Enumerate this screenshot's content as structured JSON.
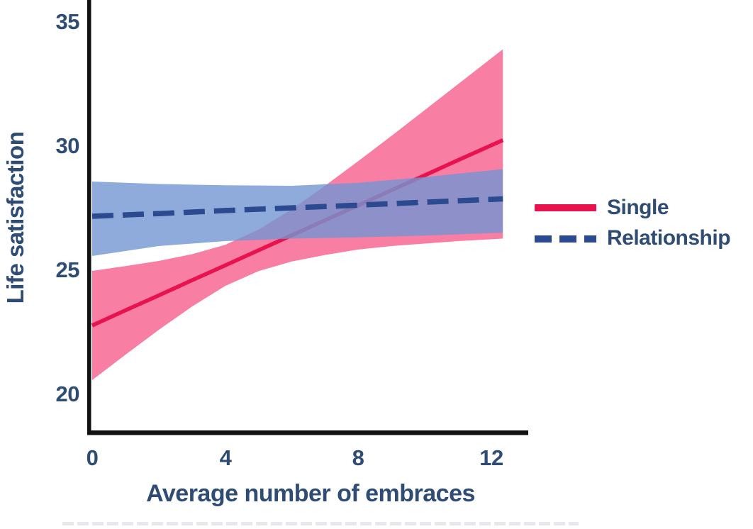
{
  "figure": {
    "background": "#ffffff",
    "text_color": "#2e4c74",
    "axis_color": "#111111"
  },
  "chart_data": {
    "type": "line",
    "title": "",
    "xlabel": "Average number of embraces",
    "ylabel": "Life satisfaction",
    "x_tick_labels": [
      "0",
      "4",
      "8",
      "12"
    ],
    "y_tick_labels": [
      "35",
      "30",
      "25",
      "20"
    ],
    "xlim": [
      -0.15,
      13.1
    ],
    "ylim": [
      18.4,
      35.9
    ],
    "grid": false,
    "legend_position": "right",
    "series": [
      {
        "name": "Single",
        "style": "solid",
        "color": "#e8124e",
        "band_color": "#f87ea3",
        "band_opacity": 1,
        "line_width": 5.5,
        "x": [
          0,
          1,
          2,
          3,
          4,
          5,
          6,
          7,
          8,
          9,
          10,
          11,
          12.35
        ],
        "y": [
          22.8,
          23.41,
          24.01,
          24.62,
          25.22,
          25.83,
          26.43,
          27.04,
          27.64,
          28.25,
          28.85,
          29.46,
          30.27
        ],
        "ci_upper": [
          25.0,
          25.19,
          25.4,
          25.67,
          26.05,
          26.66,
          27.48,
          28.43,
          29.42,
          30.44,
          31.48,
          32.52,
          33.93
        ],
        "ci_lower": [
          20.6,
          21.62,
          22.62,
          23.56,
          24.39,
          24.99,
          25.38,
          25.64,
          25.86,
          26.0,
          26.1,
          26.2,
          26.3
        ]
      },
      {
        "name": "Relationship",
        "style": "dashed",
        "color": "#2c4a8f",
        "band_color": "#7396d2",
        "band_opacity": 0.8,
        "line_width": 7.5,
        "x": [
          0,
          2,
          4,
          6,
          8,
          10,
          12.35
        ],
        "y": [
          27.2,
          27.31,
          27.43,
          27.54,
          27.65,
          27.77,
          27.9
        ],
        "ci_upper": [
          28.6,
          28.5,
          28.45,
          28.43,
          28.55,
          28.78,
          29.1
        ],
        "ci_lower": [
          25.6,
          26.0,
          26.2,
          26.3,
          26.35,
          26.42,
          26.54
        ]
      }
    ],
    "legend": {
      "entries": [
        {
          "label": "Single"
        },
        {
          "label": "Relationship"
        }
      ]
    }
  }
}
